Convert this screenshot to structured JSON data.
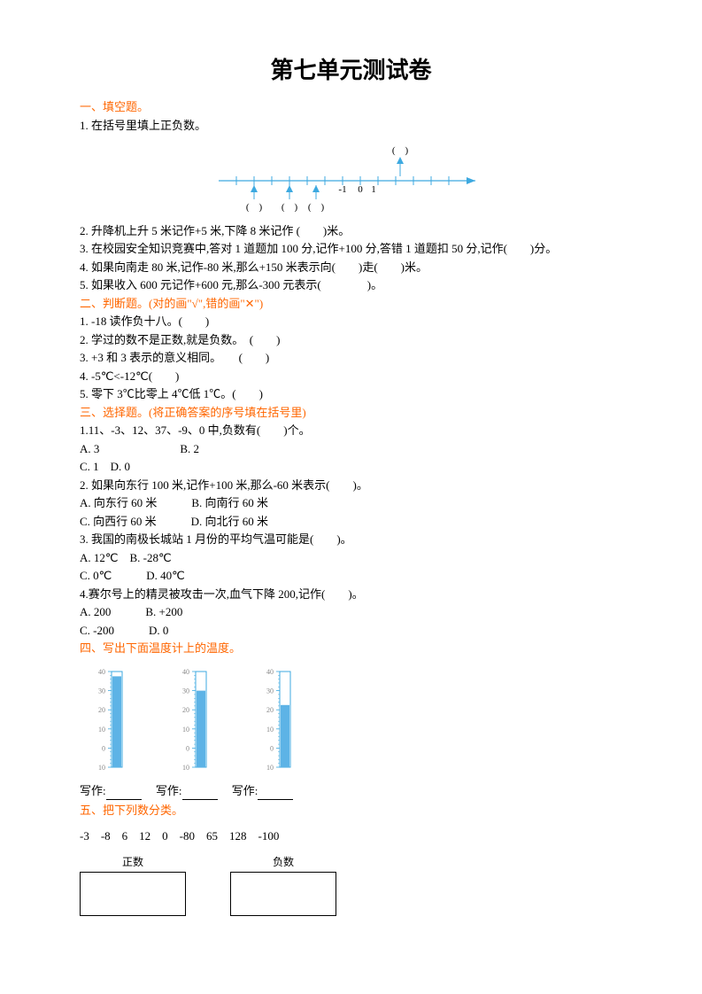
{
  "title": "第七单元测试卷",
  "s1": {
    "header": "一、填空题。",
    "q1": "1. 在括号里填上正负数。",
    "numline": {
      "axis_color": "#3da9e0",
      "arrow_color": "#3da9e0",
      "label_up": "(　)",
      "labels_down": [
        "(　)",
        "(　)",
        "(　)"
      ],
      "ticks": [
        "-1",
        "0",
        "1"
      ],
      "hook_color": "#3da9e0"
    },
    "q2": "2. 升降机上升 5 米记作+5 米,下降 8 米记作 (　　)米。",
    "q3": "3. 在校园安全知识竞赛中,答对 1 道题加 100 分,记作+100 分,答错 1 道题扣 50 分,记作(　　)分。",
    "q4": "4. 如果向南走 80 米,记作-80 米,那么+150 米表示向(　　)走(　　)米。",
    "q5": "5. 如果收入 600 元记作+600 元,那么-300 元表示(　　　　)。"
  },
  "s2": {
    "header": "二、判断题。(对的画\"√\",错的画\"✕\")",
    "q1": "1. -18 读作负十八。(　　)",
    "q2": "2. 学过的数不是正数,就是负数。　(　　)",
    "q3": "3. +3 和 3 表示的意义相同。　　(　　)",
    "q4": "4. -5℃<-12℃(　　)",
    "q5": "5. 零下 3℃比零上 4℃低 1℃。(　　)"
  },
  "s3": {
    "header": "三、选择题。(将正确答案的序号填在括号里)",
    "q1": "1.11、-3、12、37、-9、0 中,负数有(　　)个。",
    "q1a": "A. 3　　　　　　　B. 2",
    "q1b": "C. 1　D. 0",
    "q2": "2. 如果向东行 100 米,记作+100 米,那么-60 米表示(　　)。",
    "q2a": "A. 向东行 60 米　　　B. 向南行 60 米",
    "q2b": "C. 向西行 60 米　　　D. 向北行 60 米",
    "q3": "3. 我国的南极长城站 1 月份的平均气温可能是(　　)。",
    "q3a": "A. 12℃　B. -28℃",
    "q3b": "C. 0℃　　　D. 40℃",
    "q4": "4.赛尔号上的精灵被攻击一次,血气下降 200,记作(　　)。",
    "q4a": "A. 200　　　B. +200",
    "q4b": "C. -200　　　D. 0"
  },
  "s4": {
    "header": "四、写出下面温度计上的温度。",
    "thermos": [
      {
        "ticks": [
          "40",
          "30",
          "20",
          "10",
          "0",
          "10"
        ],
        "fill_top": 0.95,
        "fill_color": "#5db3e6"
      },
      {
        "ticks": [
          "40",
          "30",
          "20",
          "10",
          "0",
          "10"
        ],
        "fill_top": 0.8,
        "fill_color": "#5db3e6"
      },
      {
        "ticks": [
          "40",
          "30",
          "20",
          "10",
          "0",
          "10"
        ],
        "fill_top": 0.65,
        "fill_color": "#5db3e6"
      }
    ],
    "write": "写作:",
    "write2": "写作:",
    "write3": "写作:"
  },
  "s5": {
    "header": "五、把下列数分类。",
    "numbers": "-3　-8　6　12　0　-80　65　128　-100",
    "box1": "正数",
    "box2": "负数"
  }
}
